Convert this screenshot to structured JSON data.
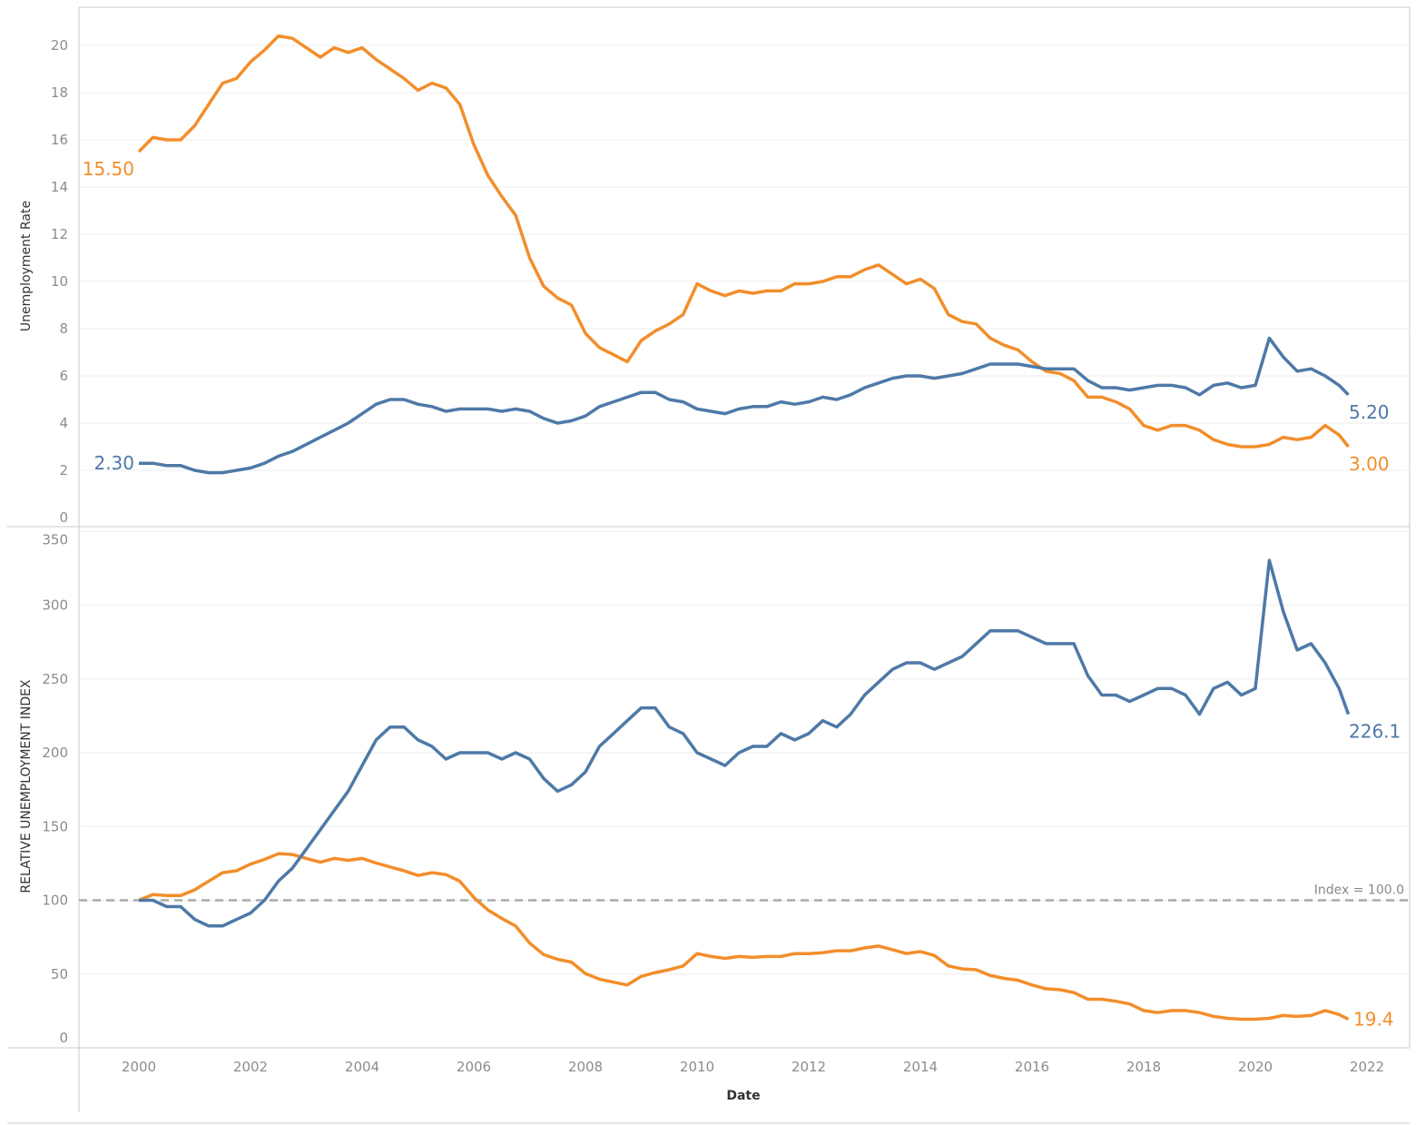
{
  "chart_data": [
    {
      "type": "line",
      "ylabel": "Unemployment Rate",
      "ylim": [
        0,
        20
      ],
      "yticks": [
        0,
        2,
        4,
        6,
        8,
        10,
        12,
        14,
        16,
        18,
        20
      ],
      "grid": true,
      "x": [
        "2000-01",
        "2000-04",
        "2000-07",
        "2000-10",
        "2001-01",
        "2001-04",
        "2001-07",
        "2001-10",
        "2002-01",
        "2002-04",
        "2002-07",
        "2002-10",
        "2003-01",
        "2003-04",
        "2003-07",
        "2003-10",
        "2004-01",
        "2004-04",
        "2004-07",
        "2004-10",
        "2005-01",
        "2005-04",
        "2005-07",
        "2005-10",
        "2006-01",
        "2006-04",
        "2006-07",
        "2006-10",
        "2007-01",
        "2007-04",
        "2007-07",
        "2007-10",
        "2008-01",
        "2008-04",
        "2008-07",
        "2008-10",
        "2009-01",
        "2009-04",
        "2009-07",
        "2009-10",
        "2010-01",
        "2010-04",
        "2010-07",
        "2010-10",
        "2011-01",
        "2011-04",
        "2011-07",
        "2011-10",
        "2012-01",
        "2012-04",
        "2012-07",
        "2012-10",
        "2013-01",
        "2013-04",
        "2013-07",
        "2013-10",
        "2014-01",
        "2014-04",
        "2014-07",
        "2014-10",
        "2015-01",
        "2015-04",
        "2015-07",
        "2015-10",
        "2016-01",
        "2016-04",
        "2016-07",
        "2016-10",
        "2017-01",
        "2017-04",
        "2017-07",
        "2017-10",
        "2018-01",
        "2018-04",
        "2018-07",
        "2018-10",
        "2019-01",
        "2019-04",
        "2019-07",
        "2019-10",
        "2020-01",
        "2020-04",
        "2020-07",
        "2020-10",
        "2021-01",
        "2021-04",
        "2021-07",
        "2021-09"
      ],
      "series": [
        {
          "color": "#f28e2b",
          "end_label_start": "15.50",
          "end_label_end": "3.00",
          "values": [
            15.5,
            16.1,
            16.0,
            16.0,
            16.6,
            17.5,
            18.4,
            18.6,
            19.3,
            19.8,
            20.4,
            20.3,
            19.9,
            19.5,
            19.9,
            19.7,
            19.9,
            19.4,
            19.0,
            18.6,
            18.1,
            18.4,
            18.2,
            17.5,
            15.8,
            14.5,
            13.6,
            12.8,
            11.0,
            9.8,
            9.3,
            9.0,
            7.8,
            7.2,
            6.9,
            6.6,
            7.5,
            7.9,
            8.2,
            8.6,
            9.9,
            9.6,
            9.4,
            9.6,
            9.5,
            9.6,
            9.6,
            9.9,
            9.9,
            10.0,
            10.2,
            10.2,
            10.5,
            10.7,
            10.3,
            9.9,
            10.1,
            9.7,
            8.6,
            8.3,
            8.2,
            7.6,
            7.3,
            7.1,
            6.6,
            6.2,
            6.1,
            5.8,
            5.1,
            5.1,
            4.9,
            4.6,
            3.9,
            3.7,
            3.9,
            3.9,
            3.7,
            3.3,
            3.1,
            3.0,
            3.0,
            3.1,
            3.4,
            3.3,
            3.4,
            3.9,
            3.5,
            3.0
          ]
        },
        {
          "color": "#4e79a7",
          "end_label_start": "2.30",
          "end_label_end": "5.20",
          "values": [
            2.3,
            2.3,
            2.2,
            2.2,
            2.0,
            1.9,
            1.9,
            2.0,
            2.1,
            2.3,
            2.6,
            2.8,
            3.1,
            3.4,
            3.7,
            4.0,
            4.4,
            4.8,
            5.0,
            5.0,
            4.8,
            4.7,
            4.5,
            4.6,
            4.6,
            4.6,
            4.5,
            4.6,
            4.5,
            4.2,
            4.0,
            4.1,
            4.3,
            4.7,
            4.9,
            5.1,
            5.3,
            5.3,
            5.0,
            4.9,
            4.6,
            4.5,
            4.4,
            4.6,
            4.7,
            4.7,
            4.9,
            4.8,
            4.9,
            5.1,
            5.0,
            5.2,
            5.5,
            5.7,
            5.9,
            6.0,
            6.0,
            5.9,
            6.0,
            6.1,
            6.3,
            6.5,
            6.5,
            6.5,
            6.4,
            6.3,
            6.3,
            6.3,
            5.8,
            5.5,
            5.5,
            5.4,
            5.5,
            5.6,
            5.6,
            5.5,
            5.2,
            5.6,
            5.7,
            5.5,
            5.6,
            7.6,
            6.8,
            6.2,
            6.3,
            6.0,
            5.6,
            5.2
          ]
        }
      ]
    },
    {
      "type": "line",
      "ylabel": "RELATIVE UNEMPLOYMENT INDEX",
      "xlabel": "Date",
      "ylim": [
        0,
        350
      ],
      "yticks": [
        0,
        50,
        100,
        150,
        200,
        250,
        300,
        350
      ],
      "xticks": [
        "2000",
        "2002",
        "2004",
        "2006",
        "2008",
        "2010",
        "2012",
        "2014",
        "2016",
        "2018",
        "2020",
        "2022"
      ],
      "grid": true,
      "reference_line": {
        "value": 100,
        "label": "Index = 100.0",
        "style": "dashed",
        "color": "#aaaaaa"
      },
      "x_same_as_top": true,
      "series": [
        {
          "color": "#f28e2b",
          "end_label_end": "19.4",
          "values": [
            100,
            103.9,
            103.2,
            103.2,
            107.1,
            112.9,
            118.7,
            120.0,
            124.5,
            127.7,
            131.6,
            131.0,
            128.4,
            125.8,
            128.4,
            127.1,
            128.4,
            125.2,
            122.6,
            120.0,
            116.8,
            118.7,
            117.4,
            112.9,
            101.9,
            93.5,
            87.7,
            82.6,
            71.0,
            63.2,
            60.0,
            58.1,
            50.3,
            46.5,
            44.5,
            42.6,
            48.4,
            51.0,
            52.9,
            55.5,
            63.9,
            61.9,
            60.6,
            61.9,
            61.3,
            61.9,
            61.9,
            63.9,
            63.9,
            64.5,
            65.8,
            65.8,
            67.7,
            69.0,
            66.5,
            63.9,
            65.2,
            62.6,
            55.5,
            53.5,
            52.9,
            49.0,
            47.1,
            45.8,
            42.6,
            40.0,
            39.4,
            37.4,
            32.9,
            32.9,
            31.6,
            29.7,
            25.2,
            23.9,
            25.2,
            25.2,
            23.9,
            21.3,
            20.0,
            19.4,
            19.4,
            20.0,
            21.9,
            21.3,
            21.9,
            25.2,
            22.6,
            19.4
          ]
        },
        {
          "color": "#4e79a7",
          "end_label_end": "226.1",
          "values": [
            100,
            100,
            95.7,
            95.7,
            87.0,
            82.6,
            82.6,
            87.0,
            91.3,
            100,
            113.0,
            121.7,
            134.8,
            147.8,
            160.9,
            173.9,
            191.3,
            208.7,
            217.4,
            217.4,
            208.7,
            204.3,
            195.7,
            200.0,
            200,
            200,
            195.7,
            200,
            195.7,
            182.6,
            173.9,
            178.3,
            187.0,
            204.3,
            213.0,
            221.7,
            230.4,
            230.4,
            217.4,
            213.0,
            200,
            195.7,
            191.3,
            200,
            204.3,
            204.3,
            213.0,
            208.7,
            213.0,
            221.7,
            217.4,
            226.1,
            239.1,
            247.8,
            256.5,
            260.9,
            260.9,
            256.5,
            260.9,
            265.2,
            273.9,
            282.6,
            282.6,
            282.6,
            278.3,
            273.9,
            273.9,
            273.9,
            252.2,
            239.1,
            239.1,
            234.8,
            239.1,
            243.5,
            243.5,
            239.1,
            226.1,
            243.5,
            247.8,
            239.1,
            243.5,
            330.4,
            295.7,
            269.6,
            273.9,
            260.9,
            243.5,
            226.1
          ]
        }
      ]
    }
  ]
}
